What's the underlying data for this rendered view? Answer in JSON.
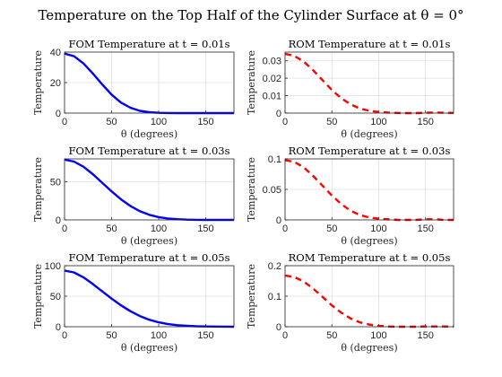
{
  "figure": {
    "title": "Temperature on the Top Half of the Cylinder Surface at θ = 0°"
  },
  "chart_data": [
    {
      "type": "line",
      "title": "FOM Temperature at t = 0.01s",
      "xlabel": "θ (degrees)",
      "ylabel": "Temperature",
      "xlim": [
        0,
        180
      ],
      "ylim": [
        0,
        40
      ],
      "xticks": [
        0,
        50,
        100,
        150
      ],
      "yticks": [
        0,
        20,
        40
      ],
      "tick_labels_x": [
        "0",
        "50",
        "100",
        "150"
      ],
      "tick_labels_y": [
        "0",
        "20",
        "40"
      ],
      "grid": true,
      "series": [
        {
          "color": "#0000ff",
          "style": "solid",
          "x": [
            0,
            10,
            20,
            30,
            40,
            50,
            60,
            70,
            80,
            90,
            100,
            110,
            120,
            130,
            140,
            150,
            160,
            170,
            180
          ],
          "y": [
            39,
            37.3,
            32.6,
            26,
            18.8,
            12.1,
            6.9,
            3.5,
            1.5,
            0.6,
            0.2,
            0.07,
            0.02,
            0,
            0,
            0,
            0,
            0,
            0
          ]
        }
      ]
    },
    {
      "type": "line",
      "title": "ROM Temperature at t = 0.01s",
      "xlabel": "θ (degrees)",
      "ylabel": "Temperature",
      "xlim": [
        0,
        180
      ],
      "ylim": [
        0,
        0.035
      ],
      "xticks": [
        0,
        50,
        100,
        150
      ],
      "yticks": [
        0,
        0.01,
        0.02,
        0.03
      ],
      "tick_labels_x": [
        "0",
        "50",
        "100",
        "150"
      ],
      "tick_labels_y": [
        "0",
        "0.01",
        "0.02",
        "0.03"
      ],
      "grid": true,
      "series": [
        {
          "color": "#ff0000",
          "style": "dashed",
          "x": [
            0,
            10,
            20,
            30,
            40,
            50,
            60,
            70,
            80,
            90,
            100,
            110,
            120,
            130,
            140,
            150,
            160,
            170,
            180
          ],
          "y": [
            0.034,
            0.0328,
            0.0295,
            0.0246,
            0.0189,
            0.0133,
            0.0085,
            0.005,
            0.0026,
            0.0013,
            0.0006,
            0.0003,
            0.0001,
            0,
            0,
            0.0002,
            0.0003,
            0.0002,
            0.0001
          ]
        }
      ]
    },
    {
      "type": "line",
      "title": "FOM Temperature at t = 0.03s",
      "xlabel": "θ (degrees)",
      "ylabel": "Temperature",
      "xlim": [
        0,
        180
      ],
      "ylim": [
        0,
        80
      ],
      "xticks": [
        0,
        50,
        100,
        150
      ],
      "yticks": [
        0,
        50
      ],
      "tick_labels_x": [
        "0",
        "50",
        "100",
        "150"
      ],
      "tick_labels_y": [
        "0",
        "50"
      ],
      "grid": true,
      "series": [
        {
          "color": "#0000ff",
          "style": "solid",
          "x": [
            0,
            10,
            20,
            30,
            40,
            50,
            60,
            70,
            80,
            90,
            100,
            110,
            120,
            130,
            140,
            150,
            160,
            170,
            180
          ],
          "y": [
            79,
            76.5,
            69.8,
            60,
            48.7,
            37.4,
            27,
            18.2,
            11.4,
            6.7,
            3.7,
            1.9,
            0.9,
            0.4,
            0.15,
            0.05,
            0.02,
            0,
            0
          ]
        }
      ]
    },
    {
      "type": "line",
      "title": "ROM Temperature at t = 0.03s",
      "xlabel": "θ (degrees)",
      "ylabel": "Temperature",
      "xlim": [
        0,
        180
      ],
      "ylim": [
        0,
        0.1
      ],
      "xticks": [
        0,
        50,
        100,
        150
      ],
      "yticks": [
        0,
        0.05,
        0.1
      ],
      "tick_labels_x": [
        "0",
        "50",
        "100",
        "150"
      ],
      "tick_labels_y": [
        "0",
        "0.05",
        "0.1"
      ],
      "grid": true,
      "series": [
        {
          "color": "#ff0000",
          "style": "dashed",
          "x": [
            0,
            10,
            20,
            30,
            40,
            50,
            60,
            70,
            80,
            90,
            100,
            110,
            120,
            130,
            140,
            150,
            160,
            170,
            180
          ],
          "y": [
            0.098,
            0.095,
            0.086,
            0.072,
            0.056,
            0.04,
            0.026,
            0.015,
            0.008,
            0.004,
            0.002,
            0.001,
            0,
            0,
            0,
            0.001,
            0.001,
            0,
            0
          ]
        }
      ]
    },
    {
      "type": "line",
      "title": "FOM Temperature at t = 0.05s",
      "xlabel": "θ (degrees)",
      "ylabel": "Temperature",
      "xlim": [
        0,
        180
      ],
      "ylim": [
        0,
        100
      ],
      "xticks": [
        0,
        50,
        100,
        150
      ],
      "yticks": [
        0,
        50,
        100
      ],
      "tick_labels_x": [
        "0",
        "50",
        "100",
        "150"
      ],
      "tick_labels_y": [
        "0",
        "50",
        "100"
      ],
      "grid": true,
      "series": [
        {
          "color": "#0000ff",
          "style": "solid",
          "x": [
            0,
            10,
            20,
            30,
            40,
            50,
            60,
            70,
            80,
            90,
            100,
            110,
            120,
            130,
            140,
            150,
            160,
            170,
            180
          ],
          "y": [
            92,
            89,
            81,
            70,
            58,
            46,
            35,
            25.5,
            17.5,
            11.5,
            7.2,
            4.3,
            2.5,
            1.4,
            0.8,
            0.45,
            0.25,
            0.12,
            0.05
          ]
        }
      ]
    },
    {
      "type": "line",
      "title": "ROM Temperature at t = 0.05s",
      "xlabel": "θ (degrees)",
      "ylabel": "Temperature",
      "xlim": [
        0,
        180
      ],
      "ylim": [
        0,
        0.2
      ],
      "xticks": [
        0,
        50,
        100,
        150
      ],
      "yticks": [
        0,
        0.1,
        0.2
      ],
      "tick_labels_x": [
        "0",
        "50",
        "100",
        "150"
      ],
      "tick_labels_y": [
        "0",
        "0.1",
        "0.2"
      ],
      "grid": true,
      "series": [
        {
          "color": "#ff0000",
          "style": "dashed",
          "x": [
            0,
            10,
            20,
            30,
            40,
            50,
            60,
            70,
            80,
            90,
            100,
            110,
            120,
            130,
            140,
            150,
            160,
            170,
            180
          ],
          "y": [
            0.168,
            0.163,
            0.148,
            0.125,
            0.098,
            0.07,
            0.046,
            0.027,
            0.014,
            0.007,
            0.003,
            0.001,
            0,
            0,
            0,
            0.001,
            0.001,
            0.001,
            0
          ]
        }
      ]
    }
  ]
}
